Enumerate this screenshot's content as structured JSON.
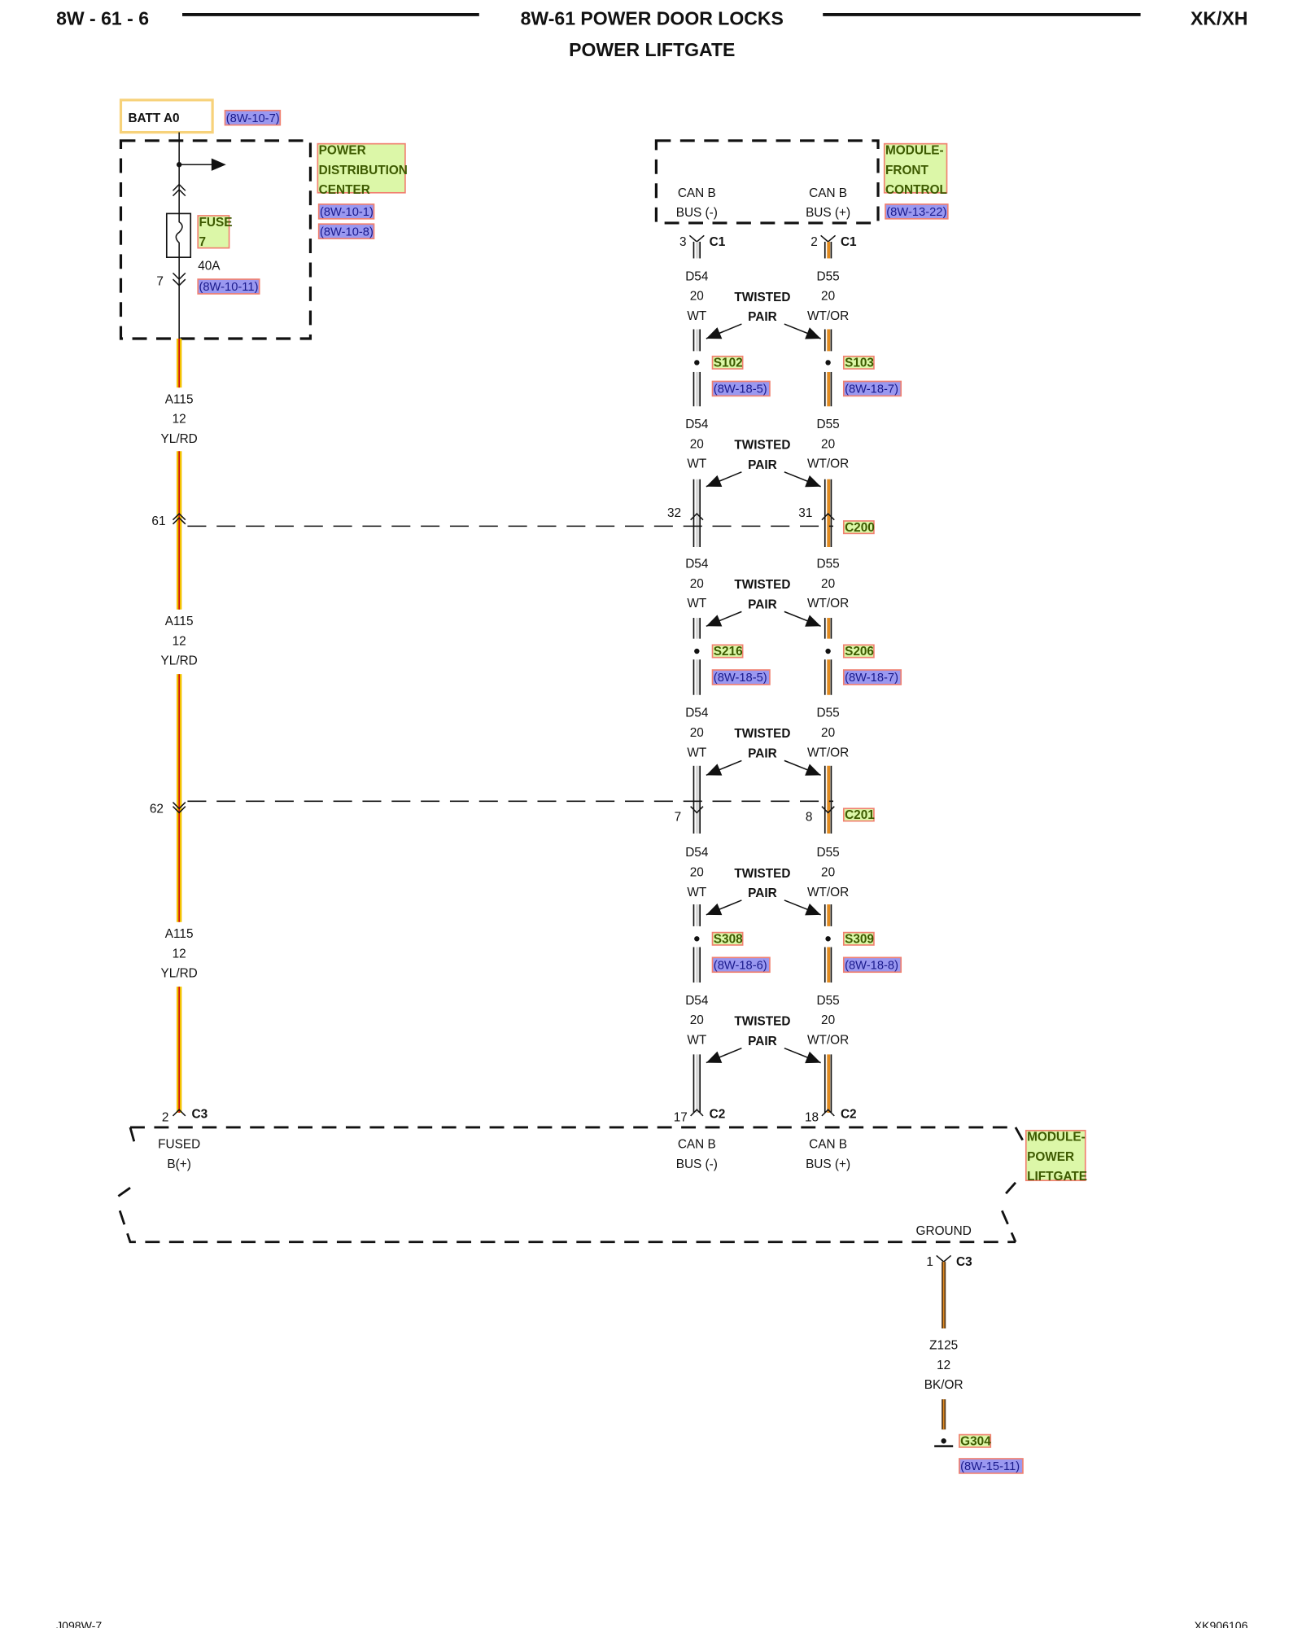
{
  "header": {
    "page_id": "8W - 61 - 6",
    "title": "8W-61 POWER DOOR LOCKS",
    "subtitle": "POWER LIFTGATE",
    "model": "XK/XH"
  },
  "footer": {
    "left": "J098W-7",
    "right": "XK906106"
  },
  "colors": {
    "wire_yl": "#f2c200",
    "wire_rd": "#d01010",
    "wire_wt": "#d8d8d8",
    "wire_or": "#e08a20",
    "wire_bk": "#333333",
    "label_bg": "#dcf7a8",
    "label_border": "#f08070",
    "ref_bg": "#9a98f0",
    "batt_border": "#f7d27a"
  },
  "battery": {
    "label": "BATT A0",
    "ref": "(8W-10-7)"
  },
  "pdc": {
    "lines": [
      "POWER",
      "DISTRIBUTION",
      "CENTER"
    ],
    "refs": [
      "(8W-10-1)",
      "(8W-10-8)"
    ],
    "fuse_label": [
      "FUSE",
      "7"
    ],
    "fuse_rating": "40A",
    "pin": "7",
    "fuse_ref": "(8W-10-11)"
  },
  "mfc": {
    "lines": [
      "MODULE-",
      "FRONT",
      "CONTROL"
    ],
    "ref": "(8W-13-22)",
    "pin_neg": [
      "CAN B",
      "BUS (-)"
    ],
    "pin_pos": [
      "CAN B",
      "BUS (+)"
    ],
    "c_neg": "3",
    "c_pos": "2",
    "connector": "C1"
  },
  "twisted": [
    "TWISTED",
    "PAIR"
  ],
  "d54": [
    "D54",
    "20",
    "WT"
  ],
  "d55": [
    "D55",
    "20",
    "WT/OR"
  ],
  "a115": [
    "A115",
    "12",
    "YL/RD"
  ],
  "splices": [
    {
      "neg": "S102",
      "pos": "S103",
      "neg_ref": "(8W-18-5)",
      "pos_ref": "(8W-18-7)"
    },
    {
      "neg": "S216",
      "pos": "S206",
      "neg_ref": "(8W-18-5)",
      "pos_ref": "(8W-18-7)"
    },
    {
      "neg": "S308",
      "pos": "S309",
      "neg_ref": "(8W-18-6)",
      "pos_ref": "(8W-18-8)"
    }
  ],
  "inline_connectors": [
    {
      "name": "C200",
      "a115_pin": "61",
      "neg_pin": "32",
      "pos_pin": "31"
    },
    {
      "name": "C201",
      "a115_pin": "62",
      "neg_pin": "7",
      "pos_pin": "8"
    }
  ],
  "mpl": {
    "lines": [
      "MODULE-",
      "POWER",
      "LIFTGATE"
    ],
    "fused": [
      "FUSED",
      "B(+)"
    ],
    "pin_neg": [
      "CAN B",
      "BUS (-)"
    ],
    "pin_pos": [
      "CAN B",
      "BUS (+)"
    ],
    "c_fused": "2",
    "c_fused_name": "C3",
    "c_neg": "17",
    "c_pos": "18",
    "c_can_name": "C2",
    "ground": "GROUND",
    "ground_pin": "1",
    "ground_conn": "C3"
  },
  "z125": [
    "Z125",
    "12",
    "BK/OR"
  ],
  "ground_point": {
    "name": "G304",
    "ref": "(8W-15-11)"
  }
}
